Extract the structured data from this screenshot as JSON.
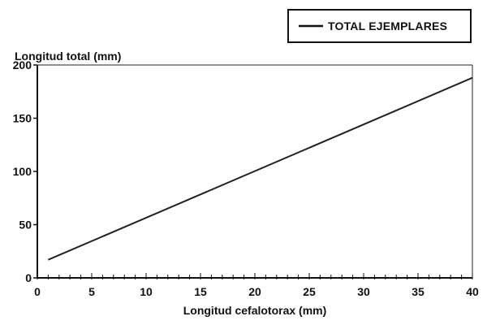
{
  "chart_data": {
    "type": "line",
    "title": "",
    "xlabel": "Longitud cefalotorax (mm)",
    "ylabel": "Longitud total (mm)",
    "xlim": [
      0,
      40
    ],
    "ylim": [
      0,
      200
    ],
    "xticks": [
      "0",
      "5",
      "10",
      "15",
      "20",
      "25",
      "30",
      "35",
      "40"
    ],
    "yticks": [
      "0",
      "50",
      "100",
      "150",
      "200"
    ],
    "grid": false,
    "legend": {
      "position": "top-right",
      "entries": [
        "TOTAL EJEMPLARES"
      ]
    },
    "series": [
      {
        "name": "TOTAL EJEMPLARES",
        "x": [
          1,
          40
        ],
        "y": [
          17,
          188
        ],
        "color": "#222222"
      }
    ]
  }
}
